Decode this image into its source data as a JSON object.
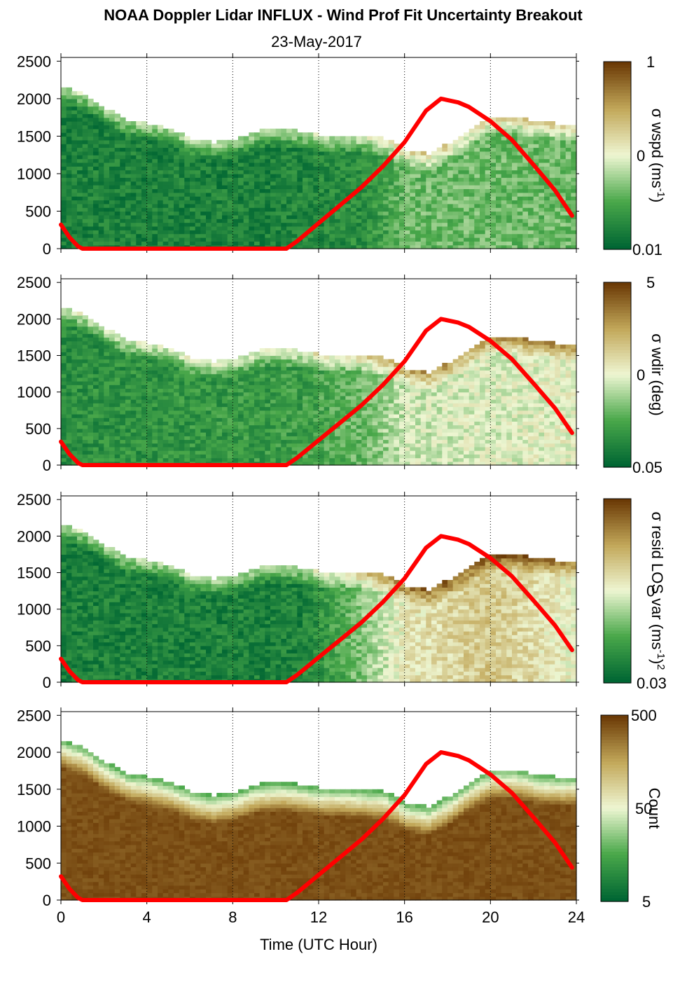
{
  "title": "NOAA Doppler Lidar INFLUX - Wind Prof Fit Uncertainty Breakout",
  "subtitle": "23-May-2017",
  "colors": {
    "green_dark": "#006633",
    "green_mid": "#4aa84a",
    "pale": "#eef6d2",
    "tan": "#c2a85a",
    "brown_dark": "#6b3a06",
    "sun_curve": "#ff0000",
    "frame": "#000000"
  },
  "chart_data": [
    {
      "type": "heatmap",
      "panel": "wspd",
      "ylabel": "σ wspd (ms-1)",
      "ylabel_parts": {
        "base": "σ wspd (ms",
        "sup": "-1",
        "close": ")"
      },
      "x": {
        "min": 0,
        "max": 24,
        "ticks": [
          0,
          4,
          8,
          12,
          16,
          20,
          24
        ],
        "grid_at": [
          4,
          8,
          12,
          16,
          20,
          24
        ]
      },
      "y": {
        "min": 0,
        "max": 2550,
        "ticks": [
          0,
          500,
          1000,
          1500,
          2000,
          2500
        ]
      },
      "colorbar": {
        "scale": "log",
        "tick_labels": [
          "1",
          "0",
          "0.01"
        ]
      },
      "cloud_top_m": [
        [
          0,
          2150
        ],
        [
          1,
          2050
        ],
        [
          2,
          1850
        ],
        [
          3,
          1700
        ],
        [
          4,
          1650
        ],
        [
          5,
          1580
        ],
        [
          6,
          1450
        ],
        [
          7,
          1400
        ],
        [
          8,
          1450
        ],
        [
          9,
          1550
        ],
        [
          10,
          1580
        ],
        [
          11,
          1550
        ],
        [
          12,
          1500
        ],
        [
          13,
          1500
        ],
        [
          14,
          1480
        ],
        [
          15,
          1450
        ],
        [
          16,
          1300
        ],
        [
          17,
          1250
        ],
        [
          18,
          1400
        ],
        [
          19,
          1600
        ],
        [
          20,
          1750
        ],
        [
          21,
          1750
        ],
        [
          22,
          1680
        ],
        [
          23,
          1650
        ],
        [
          23.8,
          1650
        ]
      ],
      "level_profile": [
        [
          0,
          0.1
        ],
        [
          10,
          0.1
        ],
        [
          14,
          0.15
        ],
        [
          16,
          0.3
        ],
        [
          24,
          0.3
        ]
      ]
    },
    {
      "type": "heatmap",
      "panel": "wdir",
      "ylabel": "σ wdir (deg)",
      "x": {
        "min": 0,
        "max": 24,
        "ticks": [
          0,
          4,
          8,
          12,
          16,
          20,
          24
        ],
        "grid_at": [
          4,
          8,
          12,
          16,
          20,
          24
        ]
      },
      "y": {
        "min": 0,
        "max": 2550,
        "ticks": [
          0,
          500,
          1000,
          1500,
          2000,
          2500
        ]
      },
      "colorbar": {
        "scale": "log",
        "tick_labels": [
          "5",
          "0",
          "0.05"
        ]
      },
      "cloud_top_m": [
        [
          0,
          2150
        ],
        [
          1,
          2050
        ],
        [
          2,
          1850
        ],
        [
          3,
          1700
        ],
        [
          4,
          1650
        ],
        [
          5,
          1580
        ],
        [
          6,
          1450
        ],
        [
          7,
          1400
        ],
        [
          8,
          1450
        ],
        [
          9,
          1550
        ],
        [
          10,
          1580
        ],
        [
          11,
          1550
        ],
        [
          12,
          1500
        ],
        [
          13,
          1500
        ],
        [
          14,
          1480
        ],
        [
          15,
          1450
        ],
        [
          16,
          1300
        ],
        [
          17,
          1250
        ],
        [
          18,
          1400
        ],
        [
          19,
          1600
        ],
        [
          20,
          1750
        ],
        [
          21,
          1750
        ],
        [
          22,
          1680
        ],
        [
          23,
          1650
        ],
        [
          23.8,
          1650
        ]
      ],
      "level_profile": [
        [
          0,
          0.15
        ],
        [
          11,
          0.2
        ],
        [
          14,
          0.3
        ],
        [
          16,
          0.45
        ],
        [
          24,
          0.5
        ]
      ]
    },
    {
      "type": "heatmap",
      "panel": "resid",
      "ylabel": "σ resid LOS var (ms-1)2",
      "ylabel_parts": {
        "base": "σ resid LOS var (ms",
        "sup": "-1",
        "close": ")",
        "sup2": "2"
      },
      "x": {
        "min": 0,
        "max": 24,
        "ticks": [
          0,
          4,
          8,
          12,
          16,
          20,
          24
        ],
        "grid_at": [
          4,
          8,
          12,
          16,
          20,
          24
        ]
      },
      "y": {
        "min": 0,
        "max": 2550,
        "ticks": [
          0,
          500,
          1000,
          1500,
          2000,
          2500
        ]
      },
      "colorbar": {
        "scale": "log",
        "tick_labels": [
          "0",
          "0.03"
        ]
      },
      "cloud_top_m": [
        [
          0,
          2150
        ],
        [
          1,
          2050
        ],
        [
          2,
          1850
        ],
        [
          3,
          1700
        ],
        [
          4,
          1650
        ],
        [
          5,
          1580
        ],
        [
          6,
          1450
        ],
        [
          7,
          1400
        ],
        [
          8,
          1450
        ],
        [
          9,
          1550
        ],
        [
          10,
          1580
        ],
        [
          11,
          1550
        ],
        [
          12,
          1500
        ],
        [
          13,
          1500
        ],
        [
          14,
          1480
        ],
        [
          15,
          1450
        ],
        [
          16,
          1300
        ],
        [
          17,
          1250
        ],
        [
          18,
          1400
        ],
        [
          19,
          1600
        ],
        [
          20,
          1750
        ],
        [
          21,
          1750
        ],
        [
          22,
          1680
        ],
        [
          23,
          1650
        ],
        [
          23.8,
          1650
        ]
      ],
      "level_profile": [
        [
          0,
          0.1
        ],
        [
          11,
          0.1
        ],
        [
          13,
          0.25
        ],
        [
          16,
          0.55
        ],
        [
          20,
          0.65
        ],
        [
          24,
          0.5
        ]
      ]
    },
    {
      "type": "heatmap",
      "panel": "count",
      "ylabel": "Count",
      "x": {
        "min": 0,
        "max": 24,
        "ticks": [
          0,
          4,
          8,
          12,
          16,
          20,
          24
        ],
        "grid_at": [
          4,
          8,
          12,
          16,
          20,
          24
        ],
        "label": "Time (UTC Hour)"
      },
      "y": {
        "min": 0,
        "max": 2550,
        "ticks": [
          0,
          500,
          1000,
          1500,
          2000,
          2500
        ]
      },
      "colorbar": {
        "scale": "log",
        "tick_labels": [
          "500",
          "50",
          "5"
        ]
      },
      "cloud_top_m": [
        [
          0,
          2150
        ],
        [
          1,
          2050
        ],
        [
          2,
          1850
        ],
        [
          3,
          1700
        ],
        [
          4,
          1650
        ],
        [
          5,
          1580
        ],
        [
          6,
          1450
        ],
        [
          7,
          1400
        ],
        [
          8,
          1450
        ],
        [
          9,
          1550
        ],
        [
          10,
          1580
        ],
        [
          11,
          1550
        ],
        [
          12,
          1500
        ],
        [
          13,
          1500
        ],
        [
          14,
          1480
        ],
        [
          15,
          1450
        ],
        [
          16,
          1300
        ],
        [
          17,
          1250
        ],
        [
          18,
          1400
        ],
        [
          19,
          1600
        ],
        [
          20,
          1750
        ],
        [
          21,
          1750
        ],
        [
          22,
          1680
        ],
        [
          23,
          1650
        ],
        [
          23.8,
          1650
        ]
      ],
      "level_profile": [
        [
          0,
          0.95
        ],
        [
          24,
          0.95
        ]
      ]
    }
  ],
  "sun_curve_m": [
    [
      0,
      320
    ],
    [
      0.4,
      150
    ],
    [
      0.8,
      30
    ],
    [
      1,
      0
    ],
    [
      10.5,
      0
    ],
    [
      11,
      100
    ],
    [
      11.5,
      220
    ],
    [
      12,
      340
    ],
    [
      13,
      580
    ],
    [
      14,
      820
    ],
    [
      15,
      1100
    ],
    [
      16,
      1420
    ],
    [
      17,
      1840
    ],
    [
      17.7,
      2000
    ],
    [
      18.5,
      1950
    ],
    [
      19,
      1890
    ],
    [
      20,
      1700
    ],
    [
      21,
      1450
    ],
    [
      22,
      1120
    ],
    [
      23,
      780
    ],
    [
      23.8,
      440
    ]
  ],
  "xlabel": "Time (UTC Hour)"
}
